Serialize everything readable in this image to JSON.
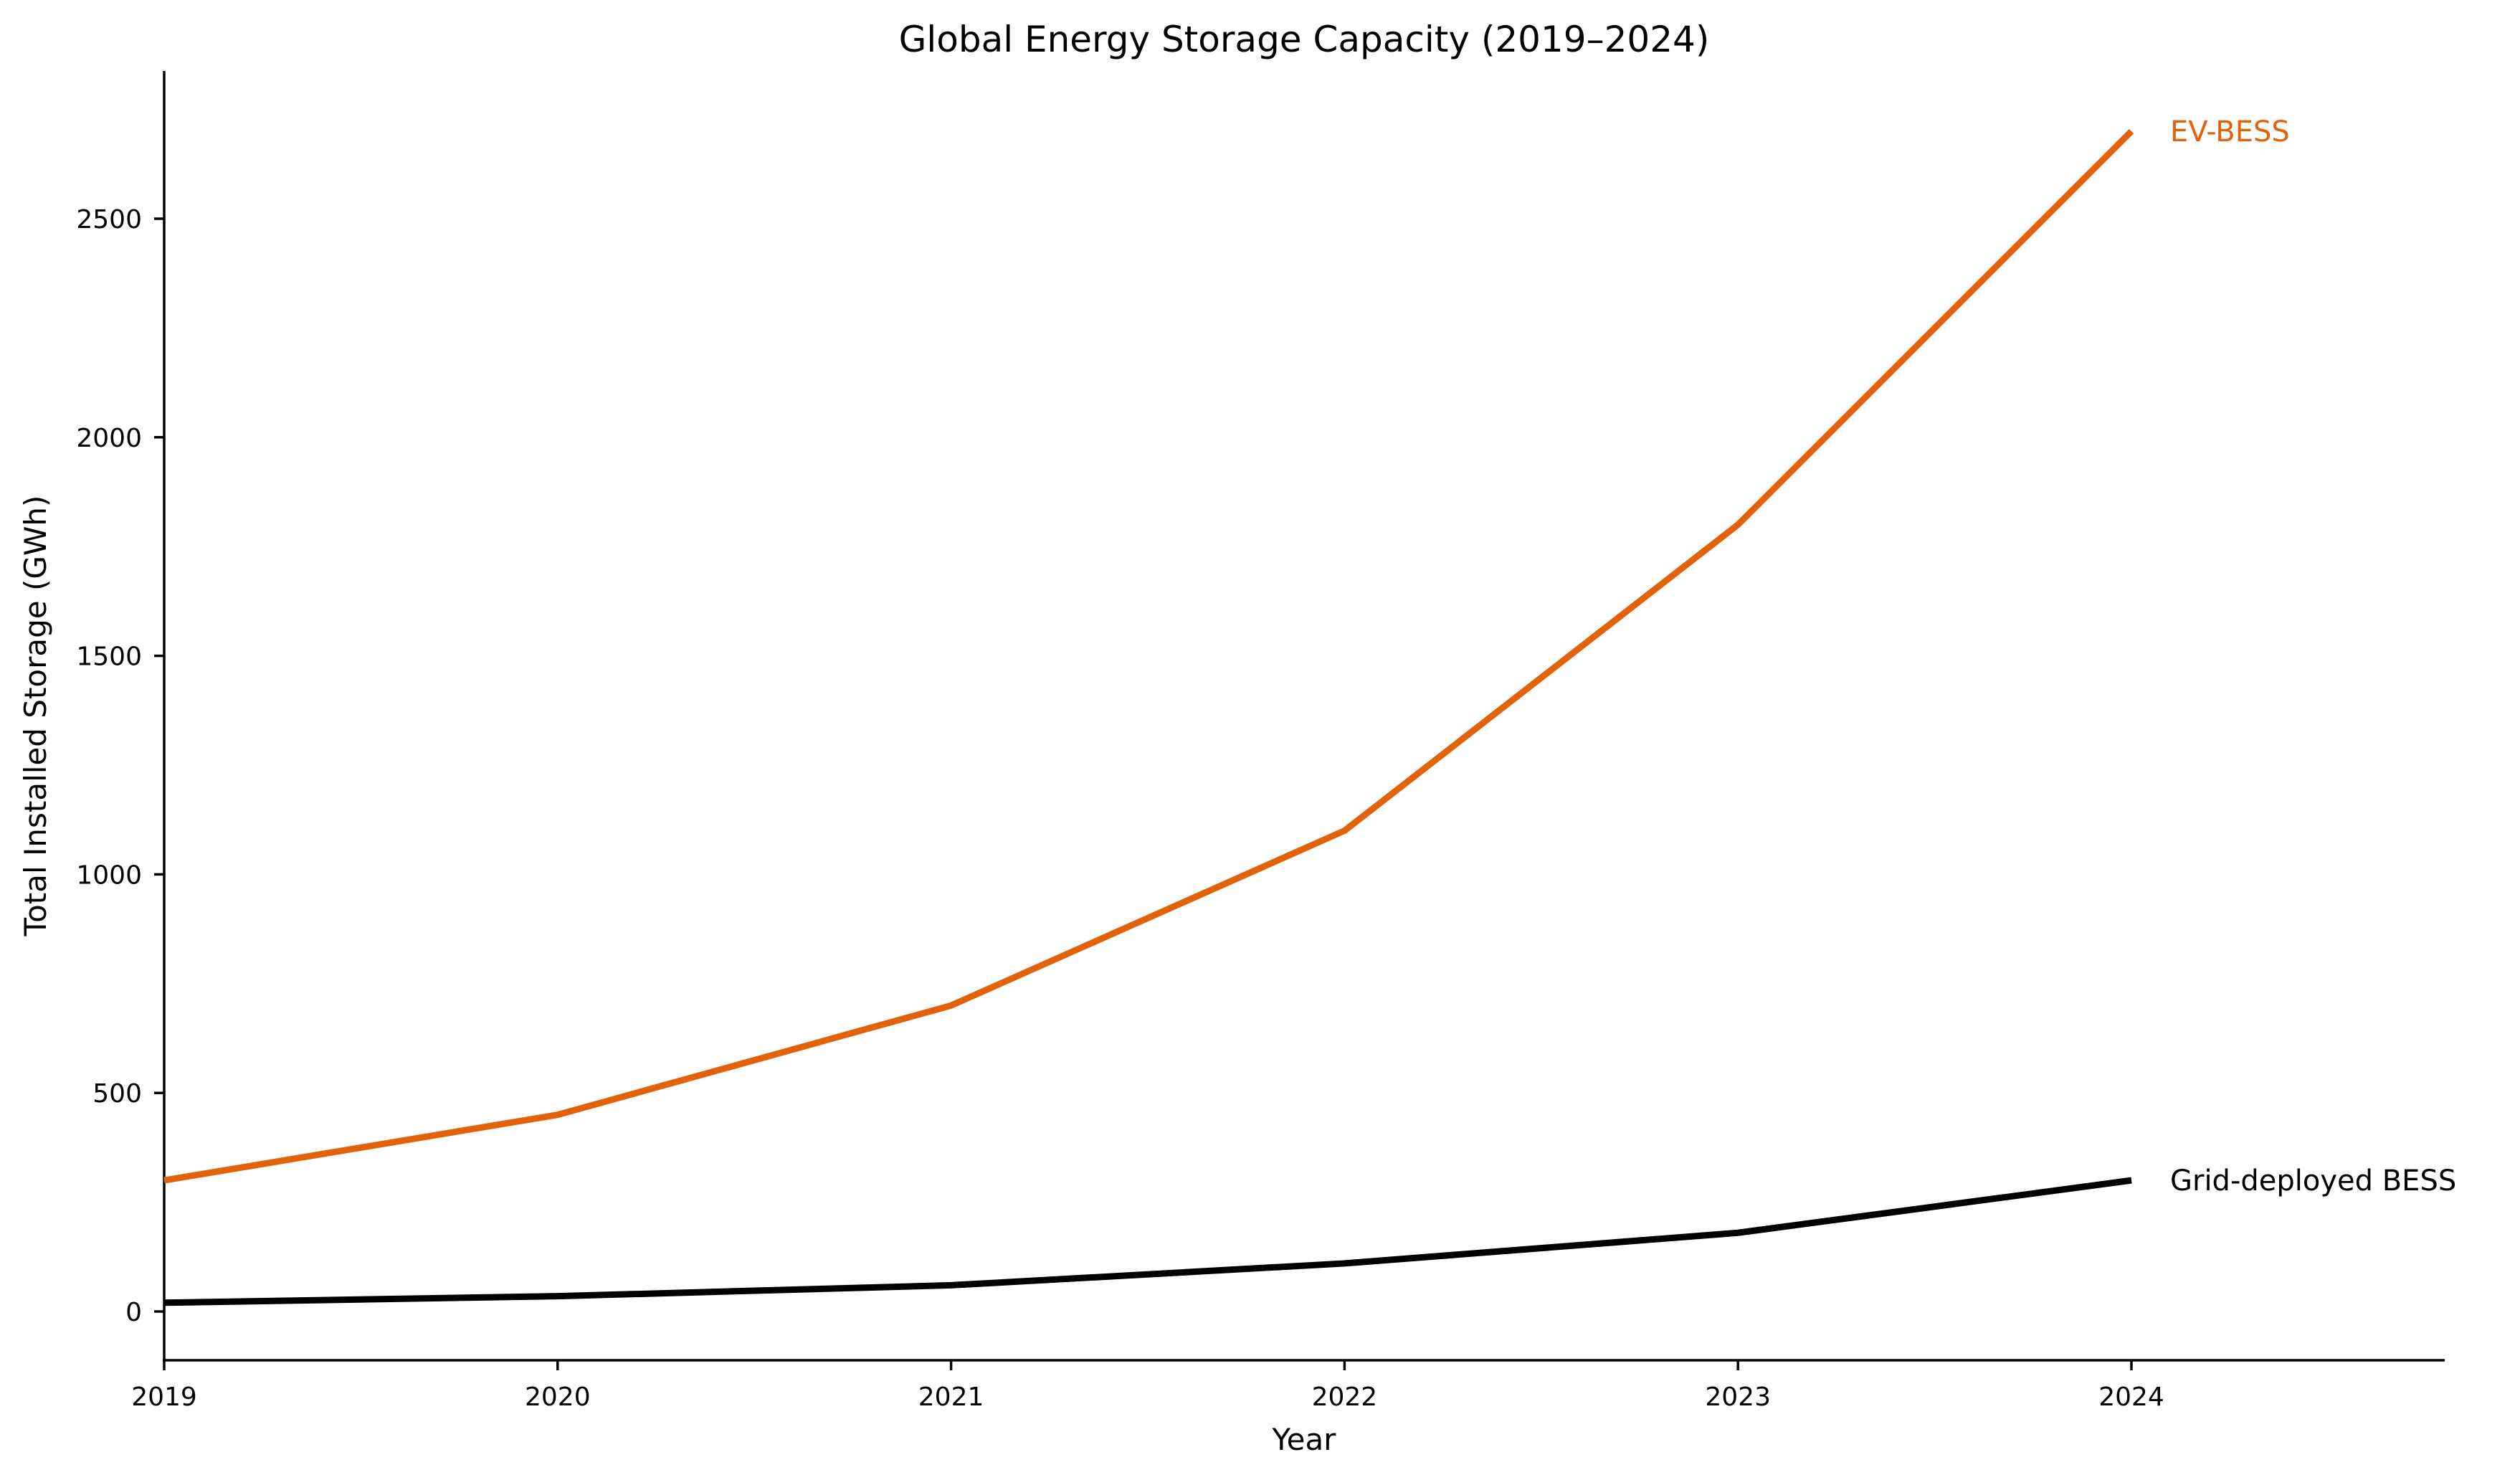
{
  "chart_data": {
    "type": "line",
    "title": "Global Energy Storage Capacity (2019–2024)",
    "xlabel": "Year",
    "ylabel": "Total Installed Storage (GWh)",
    "x": [
      2019,
      2020,
      2021,
      2022,
      2023,
      2024
    ],
    "x_tick_labels": [
      "2019",
      "2020",
      "2021",
      "2022",
      "2023",
      "2024"
    ],
    "y_ticks": [
      0,
      500,
      1000,
      1500,
      2000,
      2500
    ],
    "y_tick_labels": [
      "0",
      "500",
      "1000",
      "1500",
      "2000",
      "2500"
    ],
    "xlim": [
      2019,
      2024.8
    ],
    "ylim": [
      -110,
      2840
    ],
    "grid": false,
    "legend": "none (direct end-of-line labels, right side)",
    "series": [
      {
        "name": "EV-BESS",
        "color": "#e36209",
        "values": [
          300,
          450,
          700,
          1100,
          1800,
          2700
        ]
      },
      {
        "name": "Grid-deployed BESS",
        "color": "#000000",
        "values": [
          20,
          35,
          60,
          110,
          180,
          300
        ]
      }
    ]
  }
}
